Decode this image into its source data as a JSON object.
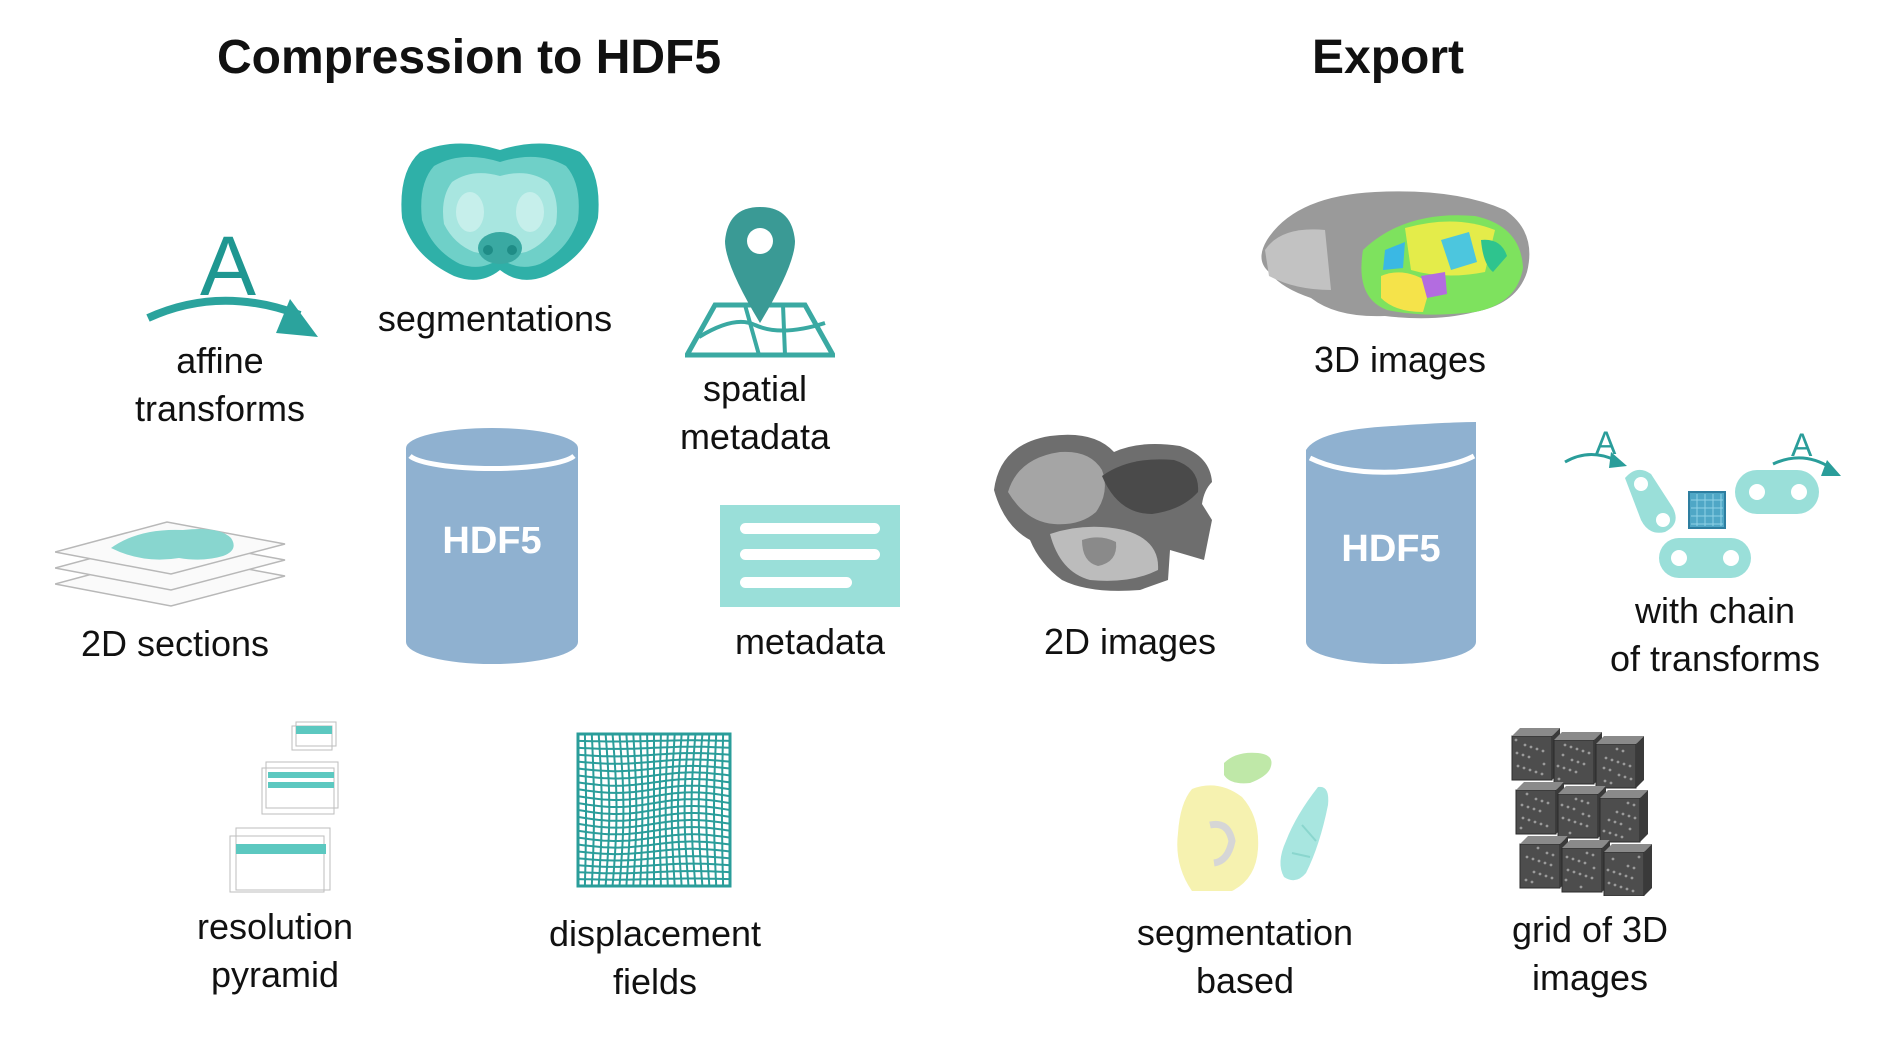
{
  "titles": {
    "compression": "Compression to HDF5",
    "export": "Export"
  },
  "labels": {
    "affine": [
      "affine",
      "transforms"
    ],
    "segmentations": "segmentations",
    "spatial": [
      "spatial",
      "metadata"
    ],
    "sections": "2D sections",
    "metadata": "metadata",
    "pyramid": [
      "resolution",
      "pyramid"
    ],
    "displacement": [
      "displacement",
      "fields"
    ],
    "images3d": "3D images",
    "images2d": "2D images",
    "chain": [
      "with chain",
      "of transforms"
    ],
    "segbased": [
      "segmentation",
      "based"
    ],
    "grid3d": [
      "grid of 3D",
      "images"
    ]
  },
  "hdf5": {
    "left": "HDF5",
    "right": "HDF5"
  },
  "glyphs": {
    "affine_letter": "A",
    "chain_letter_left": "A",
    "chain_letter_right": "A"
  },
  "colors": {
    "teal_dark": "#2a9d9a",
    "teal_mid": "#5cc8c0",
    "teal_light": "#9adfd9",
    "cylinder": "#8fb1d0",
    "grey": "#8a8a8a"
  },
  "icons": [
    "affine-arrow-icon",
    "brain-segmentation-icon",
    "map-pin-icon",
    "sections-stack-icon",
    "hdf5-cylinder-icon",
    "metadata-card-icon",
    "pyramid-icon",
    "displacement-grid-icon",
    "brain-3d-icon",
    "brain-2d-icon",
    "transform-chain-icon",
    "segmentation-shapes-icon",
    "cube-grid-icon"
  ]
}
